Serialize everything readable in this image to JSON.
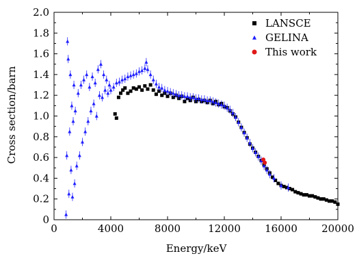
{
  "chart_data": {
    "type": "scatter",
    "xlabel": "Energy/keV",
    "ylabel": "Cross section/barn",
    "xlim": [
      0,
      20000
    ],
    "ylim": [
      0,
      2.0
    ],
    "xticks": [
      0,
      4000,
      8000,
      12000,
      16000,
      20000
    ],
    "yticks": [
      0,
      0.2,
      0.4,
      0.6,
      0.8,
      1.0,
      1.2,
      1.4,
      1.6,
      1.8,
      2.0
    ],
    "x_tick_labels": [
      "0",
      "4000",
      "8000",
      "12000",
      "16000",
      "20000"
    ],
    "y_tick_labels": [
      "0",
      "0.2",
      "0.4",
      "0.6",
      "0.8",
      "1.0",
      "1.2",
      "1.4",
      "1.6",
      "1.8",
      "2.0"
    ],
    "grid": false,
    "legend_position": "top-right",
    "series": [
      {
        "name": "LANSCE",
        "marker": "square",
        "color": "#000000",
        "points": [
          [
            4300,
            1.02
          ],
          [
            4400,
            0.98
          ],
          [
            4550,
            1.18
          ],
          [
            4700,
            1.22
          ],
          [
            4850,
            1.25
          ],
          [
            5000,
            1.27
          ],
          [
            5200,
            1.22
          ],
          [
            5400,
            1.24
          ],
          [
            5600,
            1.27
          ],
          [
            5800,
            1.26
          ],
          [
            6000,
            1.28
          ],
          [
            6200,
            1.25
          ],
          [
            6400,
            1.29
          ],
          [
            6600,
            1.26
          ],
          [
            6800,
            1.3
          ],
          [
            7000,
            1.25
          ],
          [
            7200,
            1.21
          ],
          [
            7400,
            1.24
          ],
          [
            7600,
            1.2
          ],
          [
            7800,
            1.22
          ],
          [
            8000,
            1.19
          ],
          [
            8200,
            1.22
          ],
          [
            8400,
            1.18
          ],
          [
            8600,
            1.2
          ],
          [
            8800,
            1.17
          ],
          [
            9000,
            1.19
          ],
          [
            9200,
            1.14
          ],
          [
            9400,
            1.17
          ],
          [
            9600,
            1.15
          ],
          [
            9800,
            1.18
          ],
          [
            10000,
            1.14
          ],
          [
            10200,
            1.16
          ],
          [
            10400,
            1.14
          ],
          [
            10600,
            1.15
          ],
          [
            10800,
            1.13
          ],
          [
            11000,
            1.15
          ],
          [
            11200,
            1.12
          ],
          [
            11400,
            1.14
          ],
          [
            11600,
            1.11
          ],
          [
            11800,
            1.12
          ],
          [
            12000,
            1.09
          ],
          [
            12200,
            1.08
          ],
          [
            12400,
            1.05
          ],
          [
            12600,
            1.02
          ],
          [
            12800,
            0.99
          ],
          [
            13000,
            0.94
          ],
          [
            13200,
            0.89
          ],
          [
            13400,
            0.84
          ],
          [
            13600,
            0.79
          ],
          [
            13800,
            0.73
          ],
          [
            14000,
            0.69
          ],
          [
            14200,
            0.65
          ],
          [
            14400,
            0.61
          ],
          [
            14600,
            0.57
          ],
          [
            14800,
            0.53
          ],
          [
            15000,
            0.49
          ],
          [
            15200,
            0.45
          ],
          [
            15400,
            0.41
          ],
          [
            15600,
            0.38
          ],
          [
            15800,
            0.35
          ],
          [
            16000,
            0.33
          ],
          [
            16200,
            0.32
          ],
          [
            16400,
            0.31
          ],
          [
            16600,
            0.3
          ],
          [
            16800,
            0.29
          ],
          [
            17000,
            0.27
          ],
          [
            17200,
            0.26
          ],
          [
            17400,
            0.25
          ],
          [
            17600,
            0.24
          ],
          [
            17800,
            0.24
          ],
          [
            18000,
            0.23
          ],
          [
            18200,
            0.23
          ],
          [
            18400,
            0.22
          ],
          [
            18600,
            0.21
          ],
          [
            18800,
            0.2
          ],
          [
            19000,
            0.2
          ],
          [
            19200,
            0.19
          ],
          [
            19400,
            0.18
          ],
          [
            19600,
            0.18
          ],
          [
            19800,
            0.17
          ],
          [
            20000,
            0.15
          ]
        ]
      },
      {
        "name": "GELINA",
        "marker": "triangle",
        "color": "#1f1fff",
        "points": [
          [
            850,
            0.05
          ],
          [
            900,
            0.62
          ],
          [
            950,
            1.72
          ],
          [
            1000,
            1.55
          ],
          [
            1050,
            0.25
          ],
          [
            1100,
            0.85
          ],
          [
            1150,
            1.4
          ],
          [
            1200,
            0.48
          ],
          [
            1250,
            1.1
          ],
          [
            1300,
            0.22
          ],
          [
            1350,
            0.95
          ],
          [
            1400,
            1.3
          ],
          [
            1450,
            0.35
          ],
          [
            1500,
            1.05
          ],
          [
            1600,
            0.52
          ],
          [
            1700,
            1.22
          ],
          [
            1800,
            0.62
          ],
          [
            1900,
            1.3
          ],
          [
            2000,
            0.75
          ],
          [
            2100,
            1.35
          ],
          [
            2200,
            0.85
          ],
          [
            2300,
            1.4
          ],
          [
            2400,
            0.95
          ],
          [
            2500,
            1.28
          ],
          [
            2600,
            1.05
          ],
          [
            2700,
            1.38
          ],
          [
            2800,
            1.12
          ],
          [
            2900,
            1.32
          ],
          [
            3000,
            1.0
          ],
          [
            3100,
            1.45
          ],
          [
            3200,
            1.2
          ],
          [
            3300,
            1.5
          ],
          [
            3400,
            1.18
          ],
          [
            3500,
            1.4
          ],
          [
            3600,
            1.25
          ],
          [
            3700,
            1.35
          ],
          [
            3800,
            1.22
          ],
          [
            3900,
            1.3
          ],
          [
            4000,
            1.25
          ],
          [
            4200,
            1.28
          ],
          [
            4400,
            1.32
          ],
          [
            4600,
            1.33
          ],
          [
            4800,
            1.35
          ],
          [
            5000,
            1.36
          ],
          [
            5200,
            1.38
          ],
          [
            5400,
            1.39
          ],
          [
            5600,
            1.4
          ],
          [
            5800,
            1.41
          ],
          [
            6000,
            1.43
          ],
          [
            6200,
            1.44
          ],
          [
            6400,
            1.46
          ],
          [
            6500,
            1.52
          ],
          [
            6600,
            1.45
          ],
          [
            6800,
            1.4
          ],
          [
            7000,
            1.35
          ],
          [
            7200,
            1.31
          ],
          [
            7400,
            1.28
          ],
          [
            7600,
            1.27
          ],
          [
            7800,
            1.25
          ],
          [
            8000,
            1.24
          ],
          [
            8200,
            1.23
          ],
          [
            8400,
            1.22
          ],
          [
            8600,
            1.21
          ],
          [
            8800,
            1.2
          ],
          [
            9000,
            1.2
          ],
          [
            9200,
            1.19
          ],
          [
            9400,
            1.19
          ],
          [
            9600,
            1.18
          ],
          [
            9800,
            1.18
          ],
          [
            10000,
            1.17
          ],
          [
            10200,
            1.17
          ],
          [
            10400,
            1.16
          ],
          [
            10600,
            1.16
          ],
          [
            10800,
            1.15
          ],
          [
            11000,
            1.15
          ],
          [
            11200,
            1.14
          ],
          [
            11400,
            1.13
          ],
          [
            11600,
            1.12
          ],
          [
            11800,
            1.11
          ],
          [
            12000,
            1.1
          ],
          [
            12200,
            1.08
          ],
          [
            12400,
            1.06
          ],
          [
            12600,
            1.03
          ],
          [
            12800,
            0.99
          ],
          [
            13000,
            0.94
          ],
          [
            13200,
            0.89
          ],
          [
            13400,
            0.84
          ],
          [
            13600,
            0.79
          ],
          [
            13800,
            0.74
          ],
          [
            14000,
            0.69
          ],
          [
            14200,
            0.65
          ],
          [
            14400,
            0.61
          ],
          [
            14600,
            0.57
          ],
          [
            14800,
            0.52
          ],
          [
            15000,
            0.48
          ],
          [
            15200,
            0.44
          ],
          [
            15500,
            0.4
          ],
          [
            16000,
            0.33
          ],
          [
            16500,
            0.31
          ]
        ]
      },
      {
        "name": "This work",
        "marker": "circle",
        "color": "#e01818",
        "points": [
          [
            14750,
            0.58
          ],
          [
            14850,
            0.55
          ]
        ]
      }
    ]
  }
}
